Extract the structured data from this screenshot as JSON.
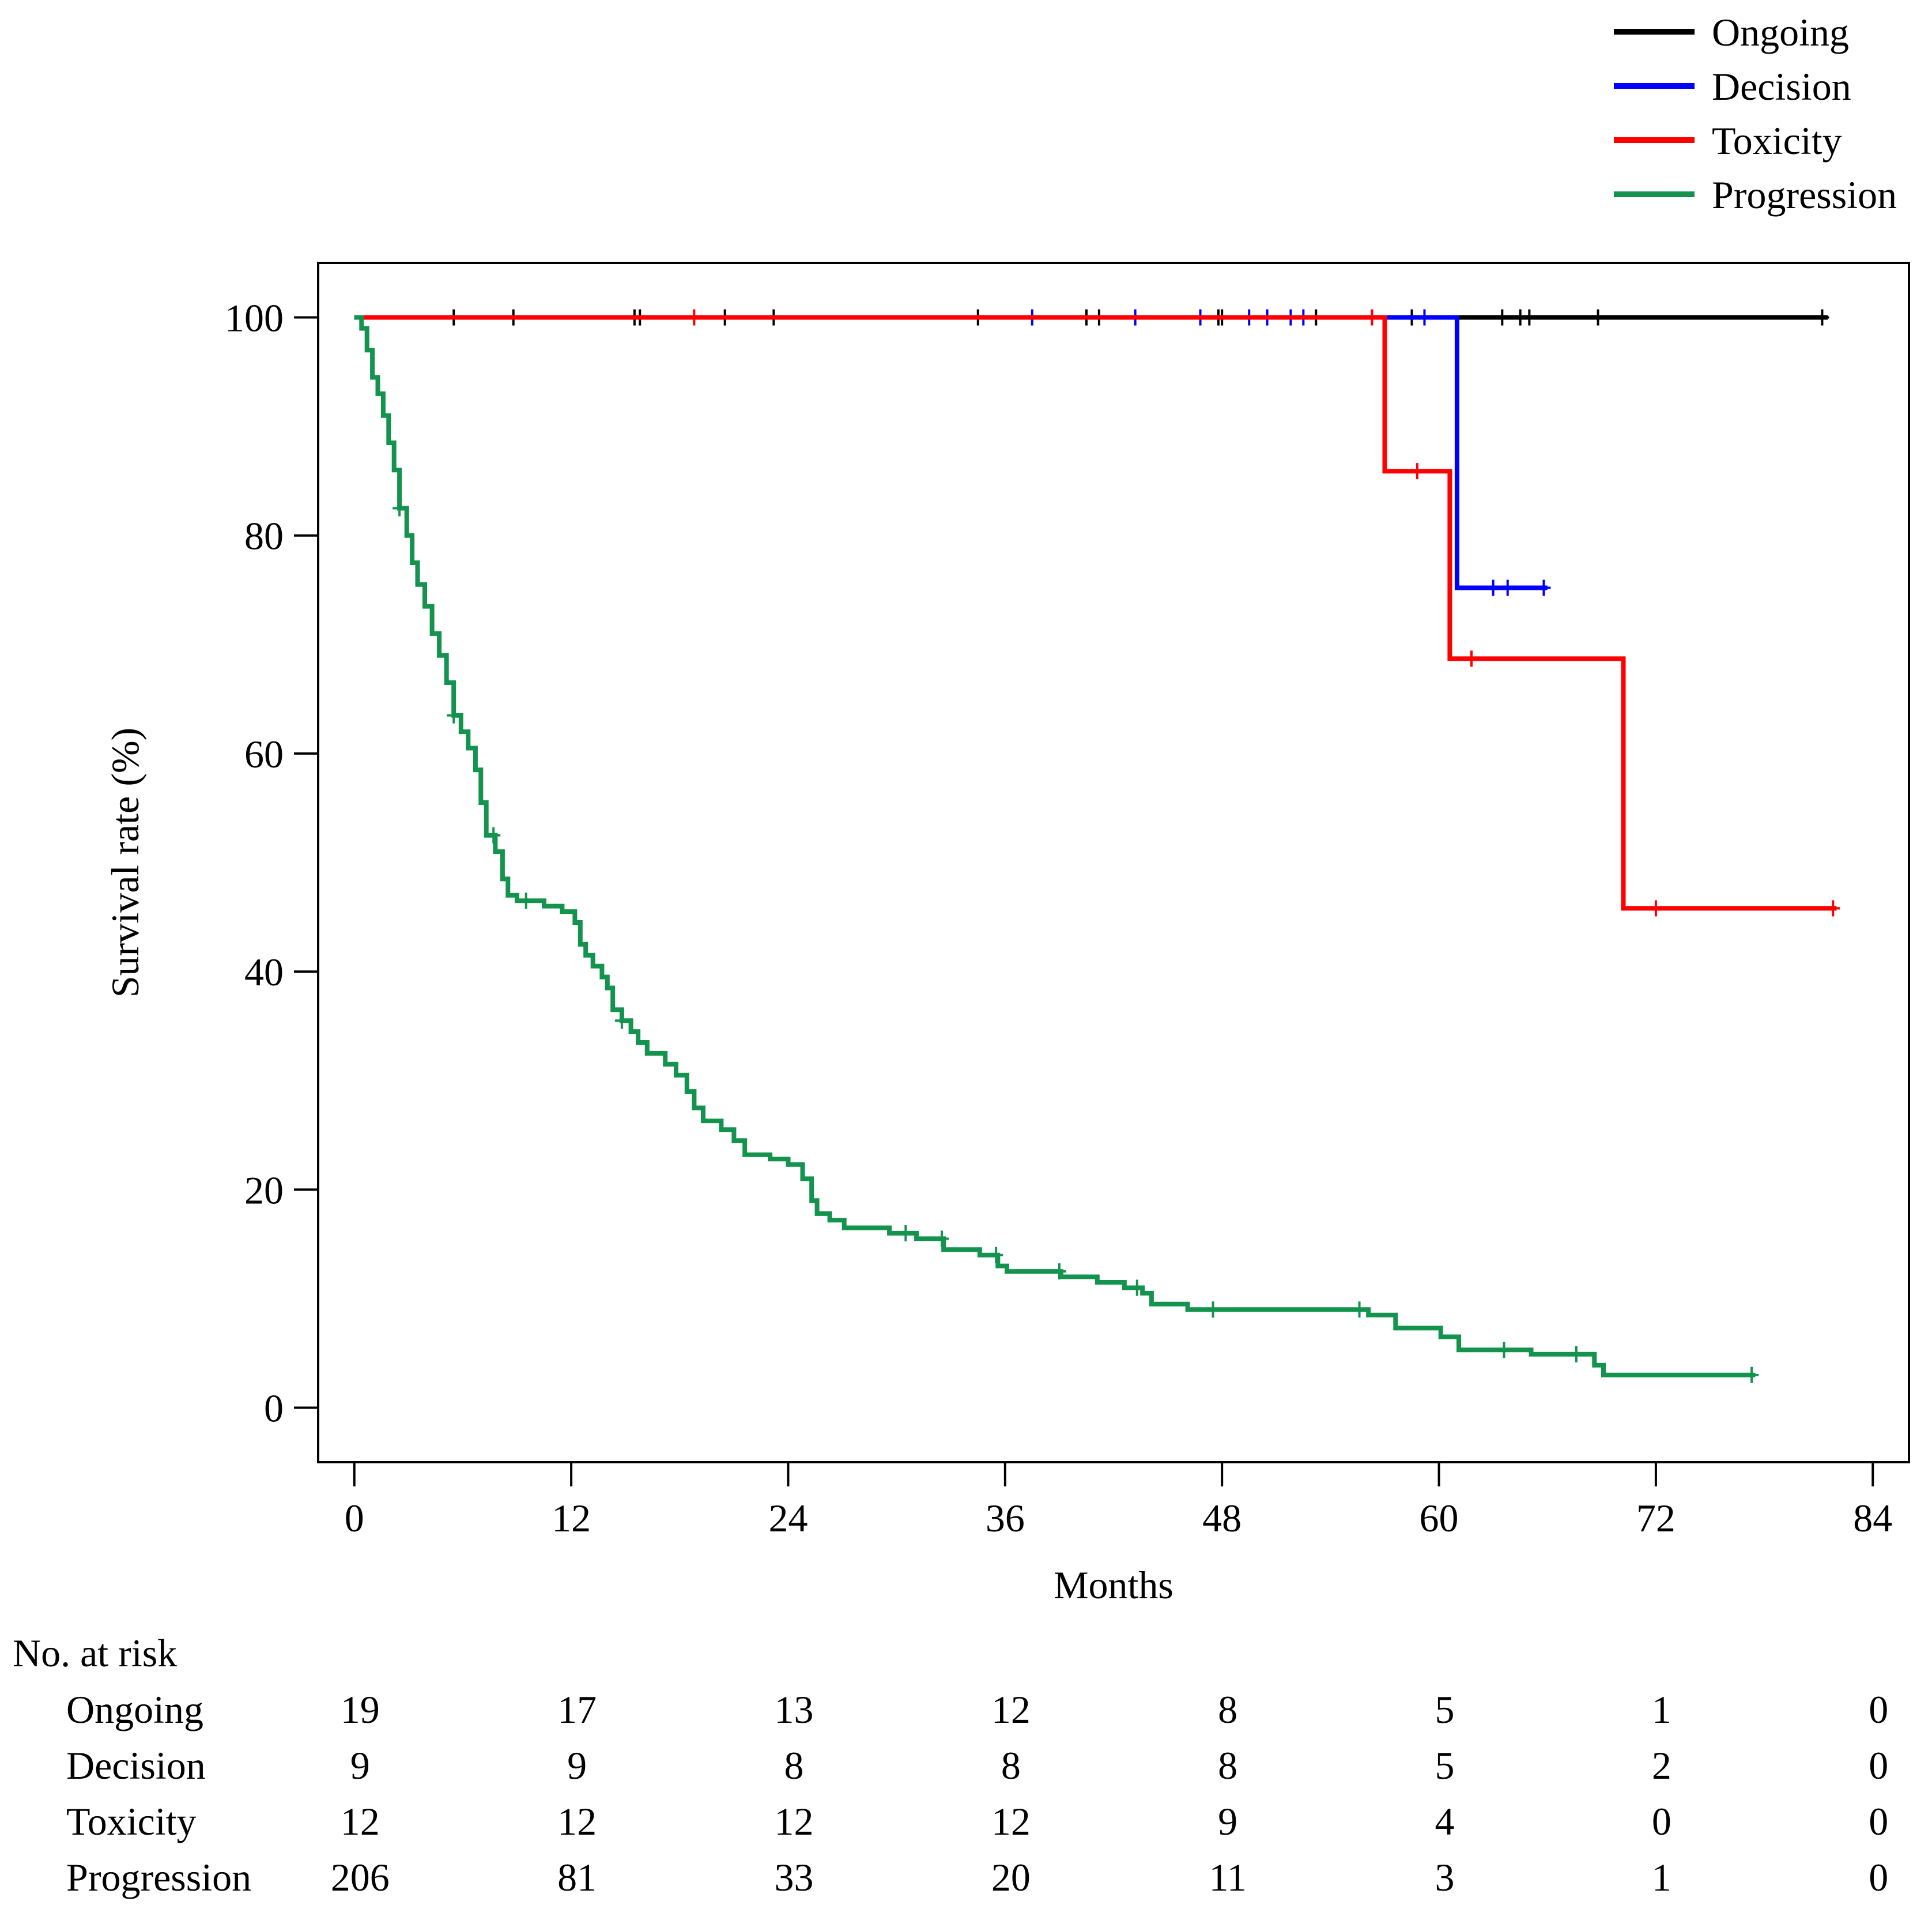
{
  "chart_data": {
    "type": "line",
    "subtype": "kaplan-meier survival curve",
    "title": "",
    "xlabel": "Months",
    "ylabel": "Survival rate (%)",
    "xlim": [
      -2,
      86
    ],
    "ylim": [
      -5,
      105
    ],
    "x_ticks": [
      0,
      12,
      24,
      36,
      48,
      60,
      72,
      84
    ],
    "y_ticks": [
      0,
      20,
      40,
      60,
      80,
      100
    ],
    "grid": false,
    "legend_position": "top-right",
    "series": [
      {
        "name": "Ongoing",
        "color": "#000000",
        "steps": [
          [
            0,
            100
          ],
          [
            81.5,
            100
          ]
        ],
        "censor_times": [
          5.5,
          8.8,
          15.5,
          15.8,
          20.5,
          23.2,
          34.5,
          40.5,
          41.2,
          47.8,
          48.0,
          53.2,
          58.5,
          63.5,
          64.5,
          65.0,
          68.8,
          81.2
        ]
      },
      {
        "name": "Decision",
        "color": "#0000ff",
        "steps": [
          [
            0,
            100
          ],
          [
            61.0,
            75.2
          ],
          [
            66.0,
            75.2
          ]
        ],
        "censor_times": [
          37.5,
          43.2,
          46.8,
          49.5,
          50.5,
          51.8,
          52.5,
          59.2,
          63.0,
          63.8,
          65.8
        ]
      },
      {
        "name": "Toxicity",
        "color": "#ff0000",
        "steps": [
          [
            0,
            100
          ],
          [
            57.0,
            85.9
          ],
          [
            60.6,
            68.7
          ],
          [
            70.2,
            45.8
          ],
          [
            82.0,
            45.8
          ]
        ],
        "censor_times": [
          18.8,
          56.3,
          58.8,
          61.8,
          72.0,
          81.8
        ]
      },
      {
        "name": "Progression",
        "color": "#13934e",
        "steps": [
          [
            0,
            100
          ],
          [
            0.4,
            99.0
          ],
          [
            0.7,
            97.0
          ],
          [
            1.0,
            94.5
          ],
          [
            1.3,
            93.0
          ],
          [
            1.6,
            91.0
          ],
          [
            1.9,
            88.5
          ],
          [
            2.2,
            86.0
          ],
          [
            2.5,
            82.5
          ],
          [
            2.9,
            80.0
          ],
          [
            3.2,
            77.5
          ],
          [
            3.5,
            75.5
          ],
          [
            3.9,
            73.5
          ],
          [
            4.3,
            71.0
          ],
          [
            4.7,
            69.0
          ],
          [
            5.1,
            66.5
          ],
          [
            5.5,
            63.5
          ],
          [
            5.9,
            62.0
          ],
          [
            6.3,
            60.5
          ],
          [
            6.7,
            58.5
          ],
          [
            7.0,
            55.5
          ],
          [
            7.3,
            52.5
          ],
          [
            7.8,
            51.0
          ],
          [
            8.2,
            48.5
          ],
          [
            8.5,
            47.0
          ],
          [
            9.0,
            46.5
          ],
          [
            10.5,
            46.0
          ],
          [
            11.5,
            45.5
          ],
          [
            12.2,
            44.5
          ],
          [
            12.5,
            42.5
          ],
          [
            12.8,
            41.5
          ],
          [
            13.2,
            40.5
          ],
          [
            13.7,
            39.5
          ],
          [
            14.0,
            38.5
          ],
          [
            14.3,
            36.5
          ],
          [
            14.8,
            35.5
          ],
          [
            15.3,
            34.5
          ],
          [
            15.7,
            33.5
          ],
          [
            16.2,
            32.5
          ],
          [
            17.2,
            31.5
          ],
          [
            17.8,
            30.5
          ],
          [
            18.4,
            29.0
          ],
          [
            18.8,
            27.5
          ],
          [
            19.3,
            26.3
          ],
          [
            20.3,
            25.5
          ],
          [
            21.0,
            24.5
          ],
          [
            21.6,
            23.2
          ],
          [
            23.0,
            22.8
          ],
          [
            24.0,
            22.3
          ],
          [
            24.8,
            21.0
          ],
          [
            25.3,
            19.0
          ],
          [
            25.6,
            17.8
          ],
          [
            26.3,
            17.2
          ],
          [
            27.1,
            16.5
          ],
          [
            29.6,
            16.0
          ],
          [
            31.1,
            15.5
          ],
          [
            32.6,
            14.5
          ],
          [
            34.6,
            14.0
          ],
          [
            35.6,
            13.0
          ],
          [
            36.1,
            12.5
          ],
          [
            39.1,
            12.0
          ],
          [
            41.1,
            11.5
          ],
          [
            42.6,
            11.0
          ],
          [
            43.6,
            10.5
          ],
          [
            44.1,
            9.5
          ],
          [
            46.1,
            9.0
          ],
          [
            56.1,
            8.5
          ],
          [
            57.6,
            7.3
          ],
          [
            60.1,
            6.5
          ],
          [
            61.1,
            5.3
          ],
          [
            65.1,
            4.9
          ],
          [
            68.6,
            3.9
          ],
          [
            69.1,
            3.0
          ],
          [
            77.5,
            3.0
          ]
        ],
        "censor_times": [
          2.5,
          5.5,
          7.7,
          9.5,
          14.8,
          30.5,
          32.5,
          35.5,
          39.0,
          43.3,
          47.5,
          55.6,
          63.6,
          67.6,
          77.3
        ]
      }
    ],
    "risk_table": {
      "title": "No. at risk",
      "times": [
        0,
        12,
        24,
        36,
        48,
        60,
        72,
        84
      ],
      "rows": [
        {
          "label": "Ongoing",
          "counts": [
            "19",
            "17",
            "13",
            "12",
            "8",
            "5",
            "1",
            "0"
          ]
        },
        {
          "label": "Decision",
          "counts": [
            "9",
            "9",
            "8",
            "8",
            "8",
            "5",
            "2",
            "0"
          ]
        },
        {
          "label": "Toxicity",
          "counts": [
            "12",
            "12",
            "12",
            "12",
            "9",
            "4",
            "0",
            "0"
          ]
        },
        {
          "label": "Progression",
          "counts": [
            "206",
            "81",
            "33",
            "20",
            "11",
            "3",
            "1",
            "0"
          ]
        }
      ]
    }
  }
}
